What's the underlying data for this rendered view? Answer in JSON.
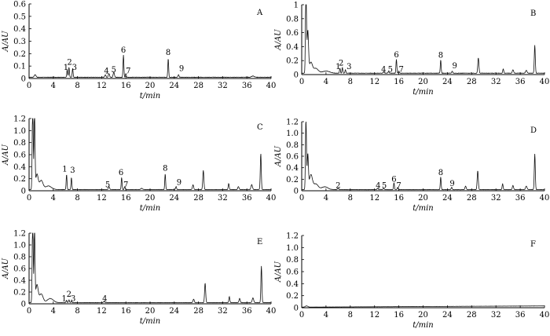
{
  "chart_data": [
    {
      "id": "A",
      "panel_label": "A",
      "type": "line",
      "ylabel": "A/AU",
      "xlabel": "t/min",
      "xlim": [
        0,
        40
      ],
      "xticks": [
        0,
        4,
        8,
        12,
        16,
        20,
        24,
        28,
        32,
        36,
        40
      ],
      "ylim": [
        0,
        0.6
      ],
      "yticks": [
        0,
        0.1,
        0.2,
        0.3,
        0.4,
        0.5,
        0.6
      ],
      "baseline": 0.01,
      "noise": 0.003,
      "peaks": [
        [
          1.0,
          0.02,
          0.15
        ],
        [
          6.3,
          0.06,
          0.07
        ],
        [
          6.6,
          0.08,
          0.07
        ],
        [
          7.2,
          0.07,
          0.07
        ],
        [
          12.6,
          0.02,
          0.1
        ],
        [
          13.2,
          0.03,
          0.1
        ],
        [
          14.0,
          0.04,
          0.1
        ],
        [
          15.6,
          0.18,
          0.07
        ],
        [
          16.0,
          0.03,
          0.07
        ],
        [
          23.0,
          0.15,
          0.07
        ],
        [
          24.7,
          0.02,
          0.08
        ],
        [
          37.0,
          0.01,
          0.2
        ]
      ],
      "labels": [
        {
          "text": "1",
          "x": 6.1,
          "y": 0.07
        },
        {
          "text": "2",
          "x": 6.7,
          "y": 0.11
        },
        {
          "text": "3",
          "x": 7.5,
          "y": 0.07
        },
        {
          "text": "4",
          "x": 12.8,
          "y": 0.04
        },
        {
          "text": "5",
          "x": 14.0,
          "y": 0.05
        },
        {
          "text": "6",
          "x": 15.6,
          "y": 0.21
        },
        {
          "text": "7",
          "x": 16.4,
          "y": 0.04
        },
        {
          "text": "8",
          "x": 23.0,
          "y": 0.19
        },
        {
          "text": "9",
          "x": 25.2,
          "y": 0.06
        }
      ]
    },
    {
      "id": "B",
      "panel_label": "B",
      "type": "line",
      "ylabel": "A/AU",
      "xlabel": "t/min",
      "xlim": [
        0,
        40
      ],
      "xticks": [
        0,
        4,
        8,
        12,
        16,
        20,
        24,
        28,
        32,
        36,
        40
      ],
      "ylim": [
        0,
        1
      ],
      "yticks": [
        0,
        0.2,
        0.4,
        0.6,
        0.8,
        1
      ],
      "baseline": 0.02,
      "noise": 0.005,
      "peaks": [
        [
          0.7,
          1.3,
          0.08
        ],
        [
          1.0,
          0.6,
          0.12
        ],
        [
          1.5,
          0.15,
          0.25
        ],
        [
          2.3,
          0.07,
          0.4
        ],
        [
          4.0,
          0.03,
          0.6
        ],
        [
          6.3,
          0.07,
          0.07
        ],
        [
          6.7,
          0.08,
          0.07
        ],
        [
          7.2,
          0.05,
          0.07
        ],
        [
          13.5,
          0.02,
          0.1
        ],
        [
          14.3,
          0.02,
          0.1
        ],
        [
          15.6,
          0.2,
          0.07
        ],
        [
          16.0,
          0.03,
          0.07
        ],
        [
          22.9,
          0.19,
          0.07
        ],
        [
          24.8,
          0.03,
          0.08
        ],
        [
          29.1,
          0.22,
          0.09
        ],
        [
          33.2,
          0.06,
          0.08
        ],
        [
          34.8,
          0.05,
          0.1
        ],
        [
          37.0,
          0.04,
          0.12
        ],
        [
          38.4,
          0.4,
          0.08
        ]
      ],
      "labels": [
        {
          "text": "1",
          "x": 6.0,
          "y": 0.08
        },
        {
          "text": "2",
          "x": 6.5,
          "y": 0.13
        },
        {
          "text": "3",
          "x": 7.8,
          "y": 0.08
        },
        {
          "text": "4",
          "x": 13.5,
          "y": 0.04
        },
        {
          "text": "5",
          "x": 14.6,
          "y": 0.04
        },
        {
          "text": "6",
          "x": 15.6,
          "y": 0.25
        },
        {
          "text": "7",
          "x": 16.4,
          "y": 0.04
        },
        {
          "text": "8",
          "x": 22.9,
          "y": 0.24
        },
        {
          "text": "9",
          "x": 25.2,
          "y": 0.09
        }
      ]
    },
    {
      "id": "C",
      "panel_label": "C",
      "type": "line",
      "ylabel": "A/AU",
      "xlabel": "t/min",
      "xlim": [
        0,
        40
      ],
      "xticks": [
        0,
        4,
        8,
        12,
        16,
        20,
        24,
        28,
        32,
        36,
        40
      ],
      "ylim": [
        0,
        1.2
      ],
      "yticks": [
        0,
        0.2,
        0.4,
        0.6,
        0.8,
        1.0,
        1.2
      ],
      "baseline": 0.02,
      "noise": 0.005,
      "peaks": [
        [
          0.6,
          1.5,
          0.08
        ],
        [
          0.9,
          1.4,
          0.08
        ],
        [
          1.3,
          0.25,
          0.2
        ],
        [
          2.0,
          0.15,
          0.3
        ],
        [
          3.2,
          0.06,
          0.5
        ],
        [
          6.2,
          0.25,
          0.07
        ],
        [
          7.0,
          0.2,
          0.07
        ],
        [
          13.2,
          0.05,
          0.1
        ],
        [
          15.3,
          0.2,
          0.07
        ],
        [
          15.8,
          0.05,
          0.07
        ],
        [
          18.6,
          0.02,
          0.15
        ],
        [
          22.5,
          0.26,
          0.07
        ],
        [
          24.3,
          0.05,
          0.08
        ],
        [
          27.1,
          0.08,
          0.1
        ],
        [
          28.8,
          0.32,
          0.09
        ],
        [
          33.0,
          0.1,
          0.08
        ],
        [
          34.6,
          0.05,
          0.1
        ],
        [
          36.8,
          0.08,
          0.12
        ],
        [
          38.3,
          0.6,
          0.08
        ]
      ],
      "labels": [
        {
          "text": "1",
          "x": 5.9,
          "y": 0.32
        },
        {
          "text": "3",
          "x": 7.2,
          "y": 0.3
        },
        {
          "text": "5",
          "x": 13.0,
          "y": 0.06
        },
        {
          "text": "6",
          "x": 15.2,
          "y": 0.26
        },
        {
          "text": "7",
          "x": 16.0,
          "y": 0.06
        },
        {
          "text": "8",
          "x": 22.5,
          "y": 0.33
        },
        {
          "text": "9",
          "x": 24.8,
          "y": 0.1
        }
      ]
    },
    {
      "id": "D",
      "panel_label": "D",
      "type": "line",
      "ylabel": "A/AU",
      "xlabel": "t/min",
      "xlim": [
        0,
        40
      ],
      "xticks": [
        0,
        4,
        8,
        12,
        16,
        20,
        24,
        28,
        32,
        36,
        40
      ],
      "ylim": [
        0,
        1.2
      ],
      "yticks": [
        0,
        0.2,
        0.4,
        0.6,
        0.8,
        1.0,
        1.2
      ],
      "baseline": 0.02,
      "noise": 0.005,
      "peaks": [
        [
          0.7,
          1.25,
          0.08
        ],
        [
          1.0,
          0.6,
          0.1
        ],
        [
          1.5,
          0.25,
          0.25
        ],
        [
          2.3,
          0.1,
          0.4
        ],
        [
          3.8,
          0.05,
          0.5
        ],
        [
          6.0,
          0.02,
          0.1
        ],
        [
          12.5,
          0.02,
          0.1
        ],
        [
          13.5,
          0.02,
          0.1
        ],
        [
          15.2,
          0.12,
          0.07
        ],
        [
          15.8,
          0.04,
          0.07
        ],
        [
          22.9,
          0.22,
          0.07
        ],
        [
          24.7,
          0.04,
          0.08
        ],
        [
          27.0,
          0.06,
          0.1
        ],
        [
          29.0,
          0.33,
          0.09
        ],
        [
          33.1,
          0.1,
          0.08
        ],
        [
          34.8,
          0.07,
          0.1
        ],
        [
          37.0,
          0.06,
          0.12
        ],
        [
          38.4,
          0.62,
          0.08
        ]
      ],
      "labels": [
        {
          "text": "2",
          "x": 6.0,
          "y": 0.05
        },
        {
          "text": "4",
          "x": 12.6,
          "y": 0.05
        },
        {
          "text": "5",
          "x": 13.6,
          "y": 0.05
        },
        {
          "text": "6",
          "x": 15.2,
          "y": 0.16
        },
        {
          "text": "7",
          "x": 16.0,
          "y": 0.05
        },
        {
          "text": "8",
          "x": 22.9,
          "y": 0.27
        },
        {
          "text": "9",
          "x": 24.8,
          "y": 0.08
        }
      ]
    },
    {
      "id": "E",
      "panel_label": "E",
      "type": "line",
      "ylabel": "A/AU",
      "xlabel": "t/min",
      "xlim": [
        0,
        40
      ],
      "xticks": [
        0,
        4,
        8,
        12,
        16,
        20,
        24,
        28,
        32,
        36,
        40
      ],
      "ylim": [
        0,
        1.2
      ],
      "yticks": [
        0,
        0.2,
        0.4,
        0.6,
        0.8,
        1.0,
        1.2
      ],
      "baseline": 0.02,
      "noise": 0.005,
      "peaks": [
        [
          0.6,
          1.5,
          0.08
        ],
        [
          0.9,
          1.3,
          0.08
        ],
        [
          1.3,
          0.3,
          0.2
        ],
        [
          2.0,
          0.15,
          0.3
        ],
        [
          3.5,
          0.07,
          0.5
        ],
        [
          6.2,
          0.04,
          0.07
        ],
        [
          6.6,
          0.05,
          0.07
        ],
        [
          7.0,
          0.03,
          0.07
        ],
        [
          12.4,
          0.02,
          0.1
        ],
        [
          27.2,
          0.06,
          0.1
        ],
        [
          29.1,
          0.33,
          0.09
        ],
        [
          33.1,
          0.1,
          0.08
        ],
        [
          34.8,
          0.07,
          0.1
        ],
        [
          37.0,
          0.08,
          0.12
        ],
        [
          38.4,
          0.62,
          0.08
        ]
      ],
      "labels": [
        {
          "text": "1",
          "x": 5.8,
          "y": 0.05
        },
        {
          "text": "2",
          "x": 6.6,
          "y": 0.12
        },
        {
          "text": "3",
          "x": 7.3,
          "y": 0.05
        },
        {
          "text": "4",
          "x": 12.5,
          "y": 0.05
        }
      ]
    },
    {
      "id": "F",
      "panel_label": "F",
      "type": "line",
      "ylabel": "A/AU",
      "xlabel": "t/min",
      "xlim": [
        0,
        40
      ],
      "xticks": [
        0,
        4,
        8,
        12,
        16,
        20,
        24,
        28,
        32,
        36,
        40
      ],
      "ylim": [
        0,
        1.2
      ],
      "yticks": [
        0,
        0.2,
        0.4,
        0.6,
        0.8,
        1.0,
        1.2
      ],
      "baseline": 0.01,
      "noise": 0.002,
      "ramp": 0.02,
      "peaks": [
        [
          0.8,
          0.02,
          0.2
        ]
      ],
      "labels": []
    }
  ]
}
